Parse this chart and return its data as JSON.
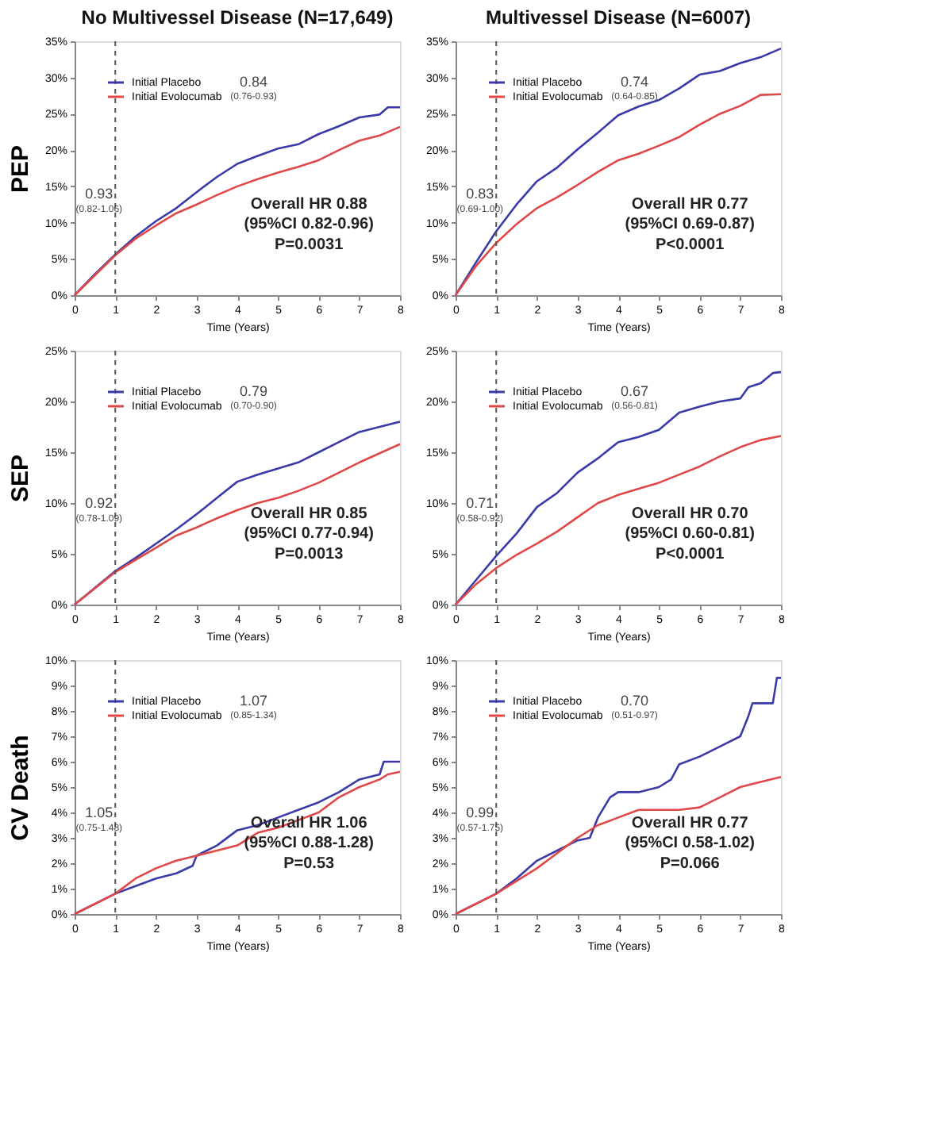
{
  "chart_data": [
    {
      "type": "line",
      "title": "No Multivessel Disease (N=17,649)",
      "ylabel": "PEP",
      "xlabel": "Time (Years)",
      "xlim": [
        0,
        8
      ],
      "xticks": [
        0,
        1,
        2,
        3,
        4,
        5,
        6,
        7,
        8
      ],
      "ylim": [
        0,
        35
      ],
      "yticks": [
        {
          "value": 0,
          "label": "0%"
        },
        {
          "value": 5,
          "label": "5%"
        },
        {
          "value": 10,
          "label": "10%"
        },
        {
          "value": 15,
          "label": "15%"
        },
        {
          "value": 20,
          "label": "20%"
        },
        {
          "value": 25,
          "label": "25%"
        },
        {
          "value": 30,
          "label": "30%"
        },
        {
          "value": 35,
          "label": "35%"
        }
      ],
      "grid": false,
      "legend": "top left",
      "series": [
        {
          "name": "Initial Placebo",
          "color": "#3a3aa8",
          "x": [
            0,
            0.5,
            1,
            1.5,
            2,
            2.5,
            3,
            3.5,
            4,
            4.5,
            5,
            5.5,
            6,
            6.5,
            7,
            7.5,
            7.7,
            8
          ],
          "values": [
            0,
            2.9,
            5.6,
            8.1,
            10.2,
            12.0,
            14.2,
            16.3,
            18.1,
            19.2,
            20.2,
            20.8,
            22.2,
            23.3,
            24.5,
            24.9,
            25.9,
            25.9
          ]
        },
        {
          "name": "Initial Evolocumab",
          "color": "#e04848",
          "x": [
            0,
            1,
            1.5,
            2,
            2.5,
            3,
            3.5,
            4,
            4.5,
            5,
            5.5,
            6,
            6.5,
            7,
            7.5,
            8
          ],
          "values": [
            0,
            5.5,
            7.8,
            9.6,
            11.3,
            12.5,
            13.8,
            15.0,
            16.0,
            16.9,
            17.7,
            18.6,
            20.0,
            21.3,
            22.0,
            23.2
          ]
        }
      ],
      "ref_lines": [
        {
          "axis": "x",
          "value": 1,
          "line_style": "dashed"
        }
      ],
      "annotations": [
        "0.93",
        "(0.82-1.06)",
        "0.84",
        "(0.76-0.93)",
        "Overall HR 0.88",
        "(95%CI 0.82-0.96)",
        "P=0.0031"
      ]
    },
    {
      "type": "line",
      "title": "Multivessel Disease (N=6007)",
      "xlabel": "Time (Years)",
      "xlim": [
        0,
        8
      ],
      "xticks": [
        0,
        1,
        2,
        3,
        4,
        5,
        6,
        7,
        8
      ],
      "ylim": [
        0,
        35
      ],
      "yticks": [
        {
          "value": 0,
          "label": "0%"
        },
        {
          "value": 5,
          "label": "5%"
        },
        {
          "value": 10,
          "label": "10%"
        },
        {
          "value": 15,
          "label": "15%"
        },
        {
          "value": 20,
          "label": "20%"
        },
        {
          "value": 25,
          "label": "25%"
        },
        {
          "value": 30,
          "label": "30%"
        },
        {
          "value": 35,
          "label": "35%"
        }
      ],
      "grid": false,
      "legend": "top left",
      "series": [
        {
          "name": "Initial Placebo",
          "color": "#3a3aa8",
          "x": [
            0,
            0.5,
            1,
            1.5,
            2,
            2.5,
            3,
            3.5,
            4,
            4.5,
            5,
            5.5,
            6,
            6.5,
            7,
            7.5,
            8
          ],
          "values": [
            0,
            4.5,
            8.8,
            12.5,
            15.7,
            17.6,
            20.1,
            22.4,
            24.8,
            26.0,
            26.9,
            28.5,
            30.4,
            30.9,
            32.0,
            32.8,
            34.0
          ]
        },
        {
          "name": "Initial Evolocumab",
          "color": "#e04848",
          "x": [
            0,
            0.5,
            1,
            1.5,
            2,
            2.5,
            3,
            3.5,
            4,
            4.5,
            5,
            5.5,
            6,
            6.5,
            7,
            7.5,
            8
          ],
          "values": [
            0,
            4,
            7.2,
            9.8,
            12.0,
            13.5,
            15.2,
            17.0,
            18.6,
            19.5,
            20.6,
            21.8,
            23.5,
            25.0,
            26.1,
            27.6,
            27.7
          ]
        }
      ],
      "ref_lines": [
        {
          "axis": "x",
          "value": 1,
          "line_style": "dashed"
        }
      ],
      "annotations": [
        "0.83",
        "(0.69-1.00)",
        "0.74",
        "(0.64-0.85)",
        "Overall HR 0.77",
        "(95%CI 0.69-0.87)",
        "P<0.0001"
      ]
    },
    {
      "type": "line",
      "ylabel": "SEP",
      "xlabel": "Time (Years)",
      "xlim": [
        0,
        8
      ],
      "xticks": [
        0,
        1,
        2,
        3,
        4,
        5,
        6,
        7,
        8
      ],
      "ylim": [
        0,
        25
      ],
      "yticks": [
        {
          "value": 0,
          "label": "0%"
        },
        {
          "value": 5,
          "label": "5%"
        },
        {
          "value": 10,
          "label": "10%"
        },
        {
          "value": 15,
          "label": "15%"
        },
        {
          "value": 20,
          "label": "20%"
        },
        {
          "value": 25,
          "label": "25%"
        }
      ],
      "grid": false,
      "legend": "top left",
      "series": [
        {
          "name": "Initial Placebo",
          "color": "#3a3aa8",
          "x": [
            0,
            1,
            1.5,
            2,
            2.5,
            3,
            3.5,
            4,
            4.5,
            5,
            5.5,
            6,
            6.5,
            7,
            7.5,
            8
          ],
          "values": [
            0,
            3.3,
            4.6,
            6.0,
            7.4,
            8.9,
            10.5,
            12.1,
            12.8,
            13.4,
            14.0,
            15.0,
            16.0,
            17.0,
            17.5,
            18.0
          ]
        },
        {
          "name": "Initial Evolocumab",
          "color": "#e04848",
          "x": [
            0,
            1,
            1.5,
            2,
            2.5,
            3,
            3.5,
            4,
            4.5,
            5,
            5.5,
            6,
            6.5,
            7,
            7.5,
            8
          ],
          "values": [
            0,
            3.2,
            4.4,
            5.6,
            6.8,
            7.6,
            8.5,
            9.3,
            10.0,
            10.5,
            11.2,
            12.0,
            13.0,
            14.0,
            14.9,
            15.8
          ]
        }
      ],
      "ref_lines": [
        {
          "axis": "x",
          "value": 1,
          "line_style": "dashed"
        }
      ],
      "annotations": [
        "0.92",
        "(0.78-1.09)",
        "0.79",
        "(0.70-0.90)",
        "Overall HR 0.85",
        "(95%CI 0.77-0.94)",
        "P=0.0013"
      ]
    },
    {
      "type": "line",
      "xlabel": "Time (Years)",
      "xlim": [
        0,
        8
      ],
      "xticks": [
        0,
        1,
        2,
        3,
        4,
        5,
        6,
        7,
        8
      ],
      "ylim": [
        0,
        25
      ],
      "yticks": [
        {
          "value": 0,
          "label": "0%"
        },
        {
          "value": 5,
          "label": "5%"
        },
        {
          "value": 10,
          "label": "10%"
        },
        {
          "value": 15,
          "label": "15%"
        },
        {
          "value": 20,
          "label": "20%"
        },
        {
          "value": 25,
          "label": "25%"
        }
      ],
      "grid": false,
      "legend": "top left",
      "series": [
        {
          "name": "Initial Placebo",
          "color": "#3a3aa8",
          "x": [
            0,
            0.5,
            1,
            1.5,
            2,
            2.5,
            3,
            3.5,
            4,
            4.5,
            5,
            5.5,
            6,
            6.5,
            7,
            7.2,
            7.5,
            7.8,
            8
          ],
          "values": [
            0,
            2.4,
            4.8,
            7.0,
            9.6,
            11.0,
            13.0,
            14.4,
            16.0,
            16.5,
            17.2,
            18.9,
            19.5,
            20.0,
            20.3,
            21.4,
            21.8,
            22.8,
            22.9
          ]
        },
        {
          "name": "Initial Evolocumab",
          "color": "#e04848",
          "x": [
            0,
            0.5,
            1,
            1.5,
            2,
            2.5,
            3,
            3.5,
            4,
            4.5,
            5,
            5.5,
            6,
            6.5,
            7,
            7.5,
            8
          ],
          "values": [
            0,
            2,
            3.6,
            4.9,
            6.0,
            7.2,
            8.6,
            10.0,
            10.8,
            11.4,
            12.0,
            12.8,
            13.6,
            14.6,
            15.5,
            16.2,
            16.6
          ]
        }
      ],
      "ref_lines": [
        {
          "axis": "x",
          "value": 1,
          "line_style": "dashed"
        }
      ],
      "annotations": [
        "0.71",
        "(0.58-0.92)",
        "0.67",
        "(0.56-0.81)",
        "Overall HR 0.70",
        "(95%CI 0.60-0.81)",
        "P<0.0001"
      ]
    },
    {
      "type": "line",
      "ylabel": "CV Death",
      "xlabel": "Time (Years)",
      "xlim": [
        0,
        8
      ],
      "xticks": [
        0,
        1,
        2,
        3,
        4,
        5,
        6,
        7,
        8
      ],
      "ylim": [
        0,
        10
      ],
      "yticks": [
        {
          "value": 0,
          "label": "0%"
        },
        {
          "value": 1,
          "label": "1%"
        },
        {
          "value": 2,
          "label": "2%"
        },
        {
          "value": 3,
          "label": "3%"
        },
        {
          "value": 4,
          "label": "4%"
        },
        {
          "value": 5,
          "label": "5%"
        },
        {
          "value": 6,
          "label": "6%"
        },
        {
          "value": 7,
          "label": "7%"
        },
        {
          "value": 8,
          "label": "8%"
        },
        {
          "value": 9,
          "label": "9%"
        },
        {
          "value": 10,
          "label": "10%"
        }
      ],
      "grid": false,
      "legend": "top left",
      "series": [
        {
          "name": "Initial Placebo",
          "color": "#3a3aa8",
          "x": [
            0,
            1,
            1.5,
            2,
            2.5,
            2.9,
            3,
            3.5,
            4,
            4.5,
            5,
            5.5,
            6,
            6.5,
            7,
            7.5,
            7.6,
            8
          ],
          "values": [
            0,
            0.8,
            1.1,
            1.4,
            1.6,
            1.9,
            2.3,
            2.7,
            3.3,
            3.5,
            3.8,
            4.1,
            4.4,
            4.8,
            5.3,
            5.5,
            6.0,
            6.0
          ]
        },
        {
          "name": "Initial Evolocumab",
          "color": "#e04848",
          "x": [
            0,
            1,
            1.5,
            2,
            2.5,
            3,
            3.5,
            4,
            4.5,
            5,
            5.5,
            6,
            6.5,
            7,
            7.5,
            7.7,
            8
          ],
          "values": [
            0,
            0.8,
            1.4,
            1.8,
            2.1,
            2.3,
            2.5,
            2.7,
            3.2,
            3.4,
            3.7,
            4.0,
            4.6,
            5.0,
            5.3,
            5.5,
            5.6
          ]
        }
      ],
      "ref_lines": [
        {
          "axis": "x",
          "value": 1,
          "line_style": "dashed"
        }
      ],
      "annotations": [
        "1.05",
        "(0.75-1.48)",
        "1.07",
        "(0.85-1.34)",
        "Overall HR 1.06",
        "(95%CI 0.88-1.28)",
        "P=0.53"
      ]
    },
    {
      "type": "line",
      "xlabel": "Time (Years)",
      "xlim": [
        0,
        8
      ],
      "xticks": [
        0,
        1,
        2,
        3,
        4,
        5,
        6,
        7,
        8
      ],
      "ylim": [
        0,
        10
      ],
      "yticks": [
        {
          "value": 0,
          "label": "0%"
        },
        {
          "value": 1,
          "label": "1%"
        },
        {
          "value": 2,
          "label": "2%"
        },
        {
          "value": 3,
          "label": "3%"
        },
        {
          "value": 4,
          "label": "4%"
        },
        {
          "value": 5,
          "label": "5%"
        },
        {
          "value": 6,
          "label": "6%"
        },
        {
          "value": 7,
          "label": "7%"
        },
        {
          "value": 8,
          "label": "8%"
        },
        {
          "value": 9,
          "label": "9%"
        },
        {
          "value": 10,
          "label": "10%"
        }
      ],
      "grid": false,
      "legend": "top left",
      "series": [
        {
          "name": "Initial Placebo",
          "color": "#3a3aa8",
          "x": [
            0,
            0.5,
            1,
            1.5,
            2,
            2.5,
            3,
            3.3,
            3.5,
            3.8,
            4,
            4.5,
            5,
            5.3,
            5.5,
            6,
            6.5,
            7,
            7.2,
            7.3,
            7.8,
            7.9,
            8
          ],
          "values": [
            0,
            0.4,
            0.8,
            1.4,
            2.1,
            2.5,
            2.9,
            3.0,
            3.8,
            4.6,
            4.8,
            4.8,
            5.0,
            5.3,
            5.9,
            6.2,
            6.6,
            7.0,
            7.8,
            8.3,
            8.3,
            9.3,
            9.3
          ]
        },
        {
          "name": "Initial Evolocumab",
          "color": "#e04848",
          "x": [
            0,
            1,
            1.5,
            2,
            2.5,
            3,
            3.5,
            4,
            4.5,
            5,
            5.5,
            6,
            6.5,
            7,
            7.5,
            8
          ],
          "values": [
            0,
            0.8,
            1.3,
            1.8,
            2.4,
            3.0,
            3.5,
            3.8,
            4.1,
            4.1,
            4.1,
            4.2,
            4.6,
            5.0,
            5.2,
            5.4
          ]
        }
      ],
      "ref_lines": [
        {
          "axis": "x",
          "value": 1,
          "line_style": "dashed"
        }
      ],
      "annotations": [
        "0.99",
        "(0.57-1.75)",
        "0.70",
        "(0.51-0.97)",
        "Overall HR 0.77",
        "(95%CI 0.58-1.02)",
        "P=0.066"
      ]
    }
  ]
}
